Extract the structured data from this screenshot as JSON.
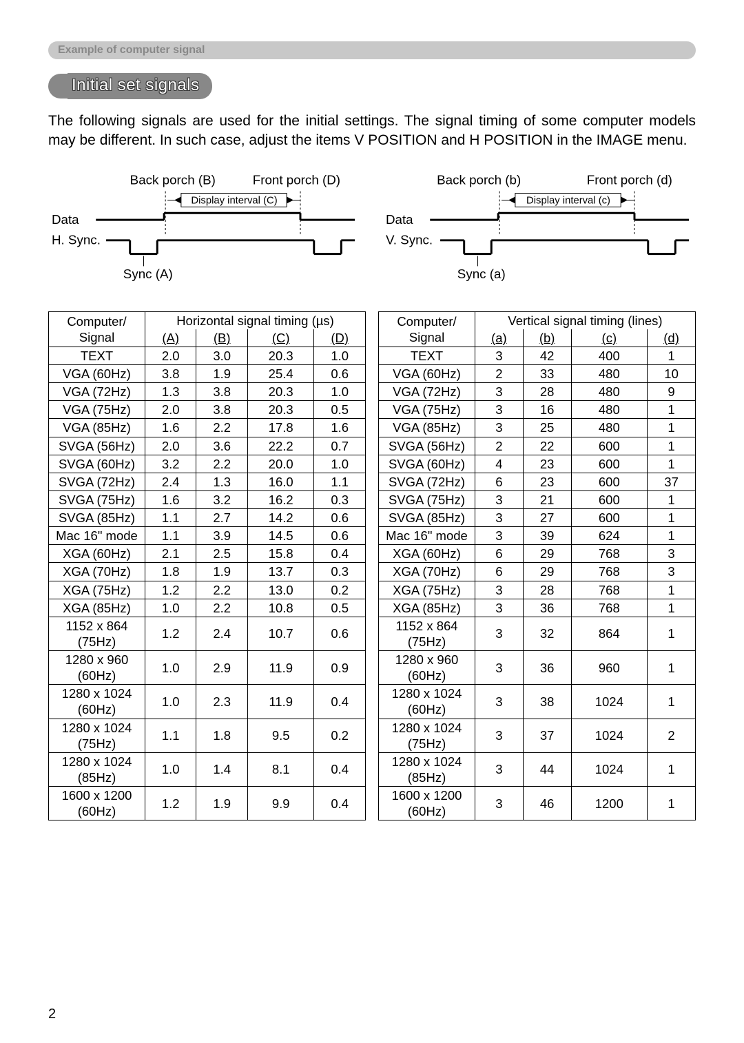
{
  "header": {
    "title": "Example of computer signal"
  },
  "subtitle": "Initial set signals",
  "intro": "The following signals are used for the initial settings. The signal timing of some computer models may be different. In such case, adjust the items V POSITION and H POSITION in the IMAGE menu.",
  "diagram_h": {
    "back_porch": "Back porch (B)",
    "front_porch": "Front porch (D)",
    "display_interval": "Display interval (C)",
    "data": "Data",
    "sync_line": "H. Sync.",
    "sync_label": "Sync (A)"
  },
  "diagram_v": {
    "back_porch": "Back porch (b)",
    "front_porch": "Front porch (d)",
    "display_interval": "Display interval (c)",
    "data": "Data",
    "sync_line": "V. Sync.",
    "sync_label": "Sync (a)"
  },
  "table_h": {
    "title_top": "Computer/",
    "title_bottom": "Signal",
    "group": "Horizontal signal timing (µs)",
    "cols": [
      "(A)",
      "(B)",
      "(C)",
      "(D)"
    ],
    "rows": [
      [
        "TEXT",
        "2.0",
        "3.0",
        "20.3",
        "1.0"
      ],
      [
        "VGA (60Hz)",
        "3.8",
        "1.9",
        "25.4",
        "0.6"
      ],
      [
        "VGA (72Hz)",
        "1.3",
        "3.8",
        "20.3",
        "1.0"
      ],
      [
        "VGA (75Hz)",
        "2.0",
        "3.8",
        "20.3",
        "0.5"
      ],
      [
        "VGA (85Hz)",
        "1.6",
        "2.2",
        "17.8",
        "1.6"
      ],
      [
        "SVGA (56Hz)",
        "2.0",
        "3.6",
        "22.2",
        "0.7"
      ],
      [
        "SVGA (60Hz)",
        "3.2",
        "2.2",
        "20.0",
        "1.0"
      ],
      [
        "SVGA (72Hz)",
        "2.4",
        "1.3",
        "16.0",
        "1.1"
      ],
      [
        "SVGA (75Hz)",
        "1.6",
        "3.2",
        "16.2",
        "0.3"
      ],
      [
        "SVGA (85Hz)",
        "1.1",
        "2.7",
        "14.2",
        "0.6"
      ],
      [
        "Mac 16\" mode",
        "1.1",
        "3.9",
        "14.5",
        "0.6"
      ],
      [
        "XGA (60Hz)",
        "2.1",
        "2.5",
        "15.8",
        "0.4"
      ],
      [
        "XGA (70Hz)",
        "1.8",
        "1.9",
        "13.7",
        "0.3"
      ],
      [
        "XGA (75Hz)",
        "1.2",
        "2.2",
        "13.0",
        "0.2"
      ],
      [
        "XGA (85Hz)",
        "1.0",
        "2.2",
        "10.8",
        "0.5"
      ],
      [
        "1152 x 864\n(75Hz)",
        "1.2",
        "2.4",
        "10.7",
        "0.6"
      ],
      [
        "1280 x 960\n(60Hz)",
        "1.0",
        "2.9",
        "11.9",
        "0.9"
      ],
      [
        "1280 x 1024\n(60Hz)",
        "1.0",
        "2.3",
        "11.9",
        "0.4"
      ],
      [
        "1280 x 1024\n(75Hz)",
        "1.1",
        "1.8",
        "9.5",
        "0.2"
      ],
      [
        "1280 x 1024\n(85Hz)",
        "1.0",
        "1.4",
        "8.1",
        "0.4"
      ],
      [
        "1600 x 1200\n(60Hz)",
        "1.2",
        "1.9",
        "9.9",
        "0.4"
      ]
    ]
  },
  "table_v": {
    "title_top": "Computer/",
    "title_bottom": "Signal",
    "group": "Vertical signal timing (lines)",
    "cols": [
      "(a)",
      "(b)",
      "(c)",
      "(d)"
    ],
    "rows": [
      [
        "TEXT",
        "3",
        "42",
        "400",
        "1"
      ],
      [
        "VGA (60Hz)",
        "2",
        "33",
        "480",
        "10"
      ],
      [
        "VGA (72Hz)",
        "3",
        "28",
        "480",
        "9"
      ],
      [
        "VGA (75Hz)",
        "3",
        "16",
        "480",
        "1"
      ],
      [
        "VGA (85Hz)",
        "3",
        "25",
        "480",
        "1"
      ],
      [
        "SVGA (56Hz)",
        "2",
        "22",
        "600",
        "1"
      ],
      [
        "SVGA (60Hz)",
        "4",
        "23",
        "600",
        "1"
      ],
      [
        "SVGA (72Hz)",
        "6",
        "23",
        "600",
        "37"
      ],
      [
        "SVGA (75Hz)",
        "3",
        "21",
        "600",
        "1"
      ],
      [
        "SVGA (85Hz)",
        "3",
        "27",
        "600",
        "1"
      ],
      [
        "Mac 16\" mode",
        "3",
        "39",
        "624",
        "1"
      ],
      [
        "XGA (60Hz)",
        "6",
        "29",
        "768",
        "3"
      ],
      [
        "XGA (70Hz)",
        "6",
        "29",
        "768",
        "3"
      ],
      [
        "XGA (75Hz)",
        "3",
        "28",
        "768",
        "1"
      ],
      [
        "XGA (85Hz)",
        "3",
        "36",
        "768",
        "1"
      ],
      [
        "1152 x 864\n(75Hz)",
        "3",
        "32",
        "864",
        "1"
      ],
      [
        "1280 x 960\n(60Hz)",
        "3",
        "36",
        "960",
        "1"
      ],
      [
        "1280 x 1024\n(60Hz)",
        "3",
        "38",
        "1024",
        "1"
      ],
      [
        "1280 x 1024\n(75Hz)",
        "3",
        "37",
        "1024",
        "2"
      ],
      [
        "1280 x 1024\n(85Hz)",
        "3",
        "44",
        "1024",
        "1"
      ],
      [
        "1600 x 1200\n(60Hz)",
        "3",
        "46",
        "1200",
        "1"
      ]
    ]
  },
  "page_number": "2",
  "colors": {
    "header_bg": "#c8c8c8",
    "header_text": "#888888",
    "pill_bg": "#888888"
  }
}
